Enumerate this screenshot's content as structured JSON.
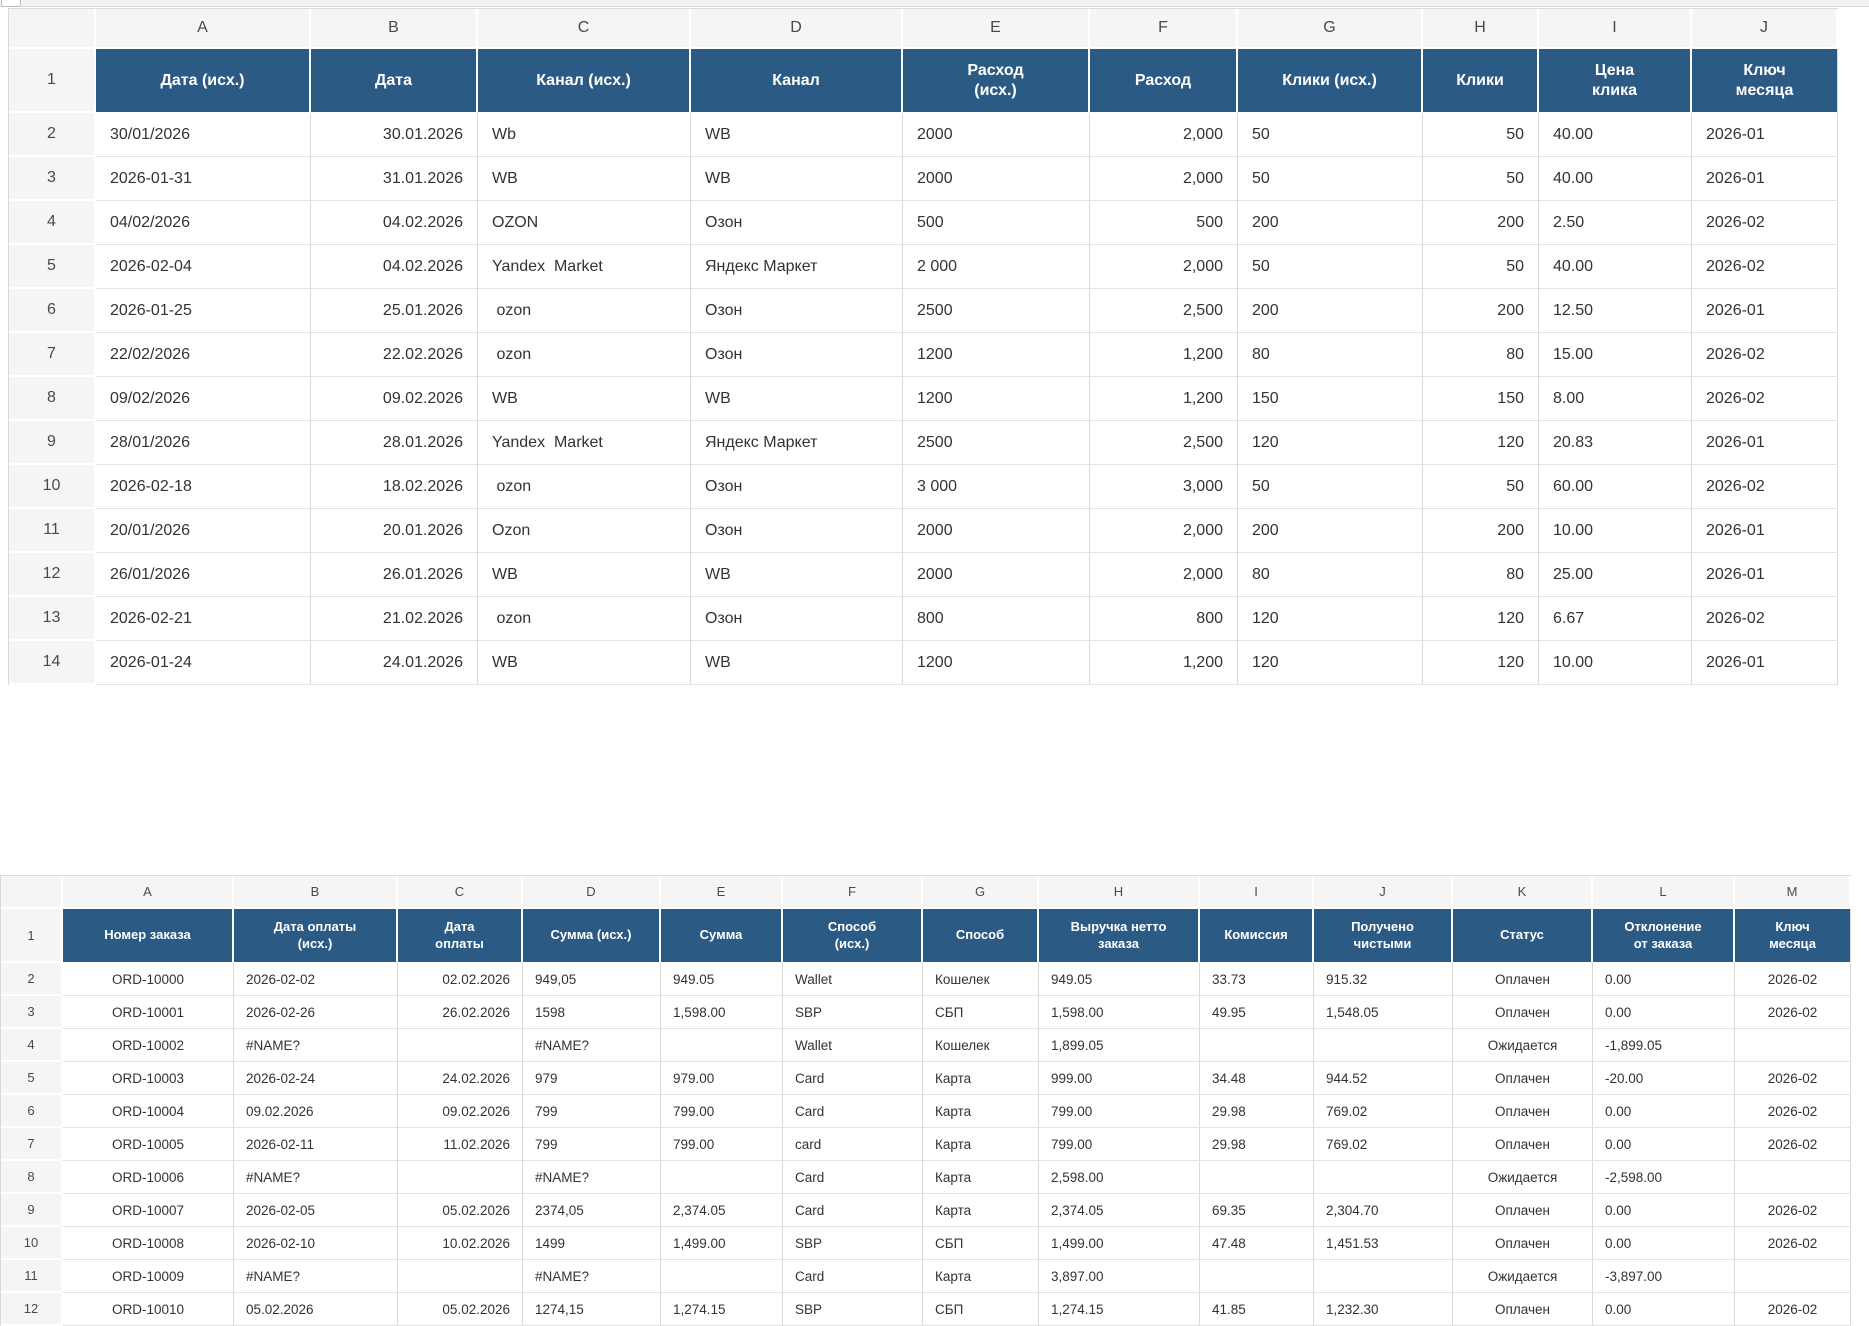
{
  "colors": {
    "header_bg": "#2b5a85",
    "header_text": "#ffffff",
    "gutter_bg": "#f5f5f5",
    "cell_text": "#333333"
  },
  "sheet1": {
    "column_letters": [
      "A",
      "B",
      "C",
      "D",
      "E",
      "F",
      "G",
      "H",
      "I",
      "J"
    ],
    "header_row_number": "1",
    "headers": [
      "Дата (исх.)",
      "Дата",
      "Канал (исх.)",
      "Канал",
      "Расход\n(исх.)",
      "Расход",
      "Клики (исх.)",
      "Клики",
      "Цена\nклика",
      "Ключ\nмесяца"
    ],
    "rows": [
      {
        "n": "2",
        "cells": [
          "30/01/2026",
          "30.01.2026",
          "Wb",
          "WB",
          "2000",
          "2,000",
          "50",
          "50",
          "40.00",
          "2026-01"
        ]
      },
      {
        "n": "3",
        "cells": [
          "2026-01-31",
          "31.01.2026",
          "WB",
          "WB",
          "2000",
          "2,000",
          "50",
          "50",
          "40.00",
          "2026-01"
        ]
      },
      {
        "n": "4",
        "cells": [
          "04/02/2026",
          "04.02.2026",
          "OZON",
          "Озон",
          "500",
          "500",
          "200",
          "200",
          "2.50",
          "2026-02"
        ]
      },
      {
        "n": "5",
        "cells": [
          "2026-02-04",
          "04.02.2026",
          "Yandex  Market",
          "Яндекс Маркет",
          "2 000",
          "2,000",
          "50",
          "50",
          "40.00",
          "2026-02"
        ]
      },
      {
        "n": "6",
        "cells": [
          "2026-01-25",
          "25.01.2026",
          " ozon",
          "Озон",
          "2500",
          "2,500",
          "200",
          "200",
          "12.50",
          "2026-01"
        ]
      },
      {
        "n": "7",
        "cells": [
          "22/02/2026",
          "22.02.2026",
          " ozon",
          "Озон",
          "1200",
          "1,200",
          "80",
          "80",
          "15.00",
          "2026-02"
        ]
      },
      {
        "n": "8",
        "cells": [
          "09/02/2026",
          "09.02.2026",
          "WB",
          "WB",
          "1200",
          "1,200",
          "150",
          "150",
          "8.00",
          "2026-02"
        ]
      },
      {
        "n": "9",
        "cells": [
          "28/01/2026",
          "28.01.2026",
          "Yandex  Market",
          "Яндекс Маркет",
          "2500",
          "2,500",
          "120",
          "120",
          "20.83",
          "2026-01"
        ]
      },
      {
        "n": "10",
        "cells": [
          "2026-02-18",
          "18.02.2026",
          " ozon",
          "Озон",
          "3 000",
          "3,000",
          "50",
          "50",
          "60.00",
          "2026-02"
        ]
      },
      {
        "n": "11",
        "cells": [
          "20/01/2026",
          "20.01.2026",
          "Ozon",
          "Озон",
          "2000",
          "2,000",
          "200",
          "200",
          "10.00",
          "2026-01"
        ]
      },
      {
        "n": "12",
        "cells": [
          "26/01/2026",
          "26.01.2026",
          "WB",
          "WB",
          "2000",
          "2,000",
          "80",
          "80",
          "25.00",
          "2026-01"
        ]
      },
      {
        "n": "13",
        "cells": [
          "2026-02-21",
          "21.02.2026",
          " ozon",
          "Озон",
          "800",
          "800",
          "120",
          "120",
          "6.67",
          "2026-02"
        ]
      },
      {
        "n": "14",
        "cells": [
          "2026-01-24",
          "24.01.2026",
          "WB",
          "WB",
          "1200",
          "1,200",
          "120",
          "120",
          "10.00",
          "2026-01"
        ]
      }
    ]
  },
  "sheet2": {
    "column_letters": [
      "A",
      "B",
      "C",
      "D",
      "E",
      "F",
      "G",
      "H",
      "I",
      "J",
      "K",
      "L",
      "M"
    ],
    "header_row_number": "1",
    "headers": [
      "Номер заказа",
      "Дата оплаты\n(исх.)",
      "Дата\nоплаты",
      "Сумма (исх.)",
      "Сумма",
      "Способ\n(исх.)",
      "Способ",
      "Выручка нетто\nзаказа",
      "Комиссия",
      "Получено\nчистыми",
      "Статус",
      "Отклонение\nот заказа",
      "Ключ\nмесяца"
    ],
    "rows": [
      {
        "n": "2",
        "cells": [
          "ORD-10000",
          "2026-02-02",
          "02.02.2026",
          "949,05",
          "949.05",
          "Wallet",
          "Кошелек",
          "949.05",
          "33.73",
          "915.32",
          "Оплачен",
          "0.00",
          "2026-02"
        ]
      },
      {
        "n": "3",
        "cells": [
          "ORD-10001",
          "2026-02-26",
          "26.02.2026",
          "1598",
          "1,598.00",
          "SBP",
          "СБП",
          "1,598.00",
          "49.95",
          "1,548.05",
          "Оплачен",
          "0.00",
          "2026-02"
        ]
      },
      {
        "n": "4",
        "cells": [
          "ORD-10002",
          "#NAME?",
          "",
          "#NAME?",
          "",
          "Wallet",
          "Кошелек",
          "1,899.05",
          "",
          "",
          "Ожидается",
          "-1,899.05",
          ""
        ]
      },
      {
        "n": "5",
        "cells": [
          "ORD-10003",
          "2026-02-24",
          "24.02.2026",
          "979",
          "979.00",
          "Card",
          "Карта",
          "999.00",
          "34.48",
          "944.52",
          "Оплачен",
          "-20.00",
          "2026-02"
        ]
      },
      {
        "n": "6",
        "cells": [
          "ORD-10004",
          "09.02.2026",
          "09.02.2026",
          "799",
          "799.00",
          "Card",
          "Карта",
          "799.00",
          "29.98",
          "769.02",
          "Оплачен",
          "0.00",
          "2026-02"
        ]
      },
      {
        "n": "7",
        "cells": [
          "ORD-10005",
          "2026-02-11",
          "11.02.2026",
          "799",
          "799.00",
          "card",
          "Карта",
          "799.00",
          "29.98",
          "769.02",
          "Оплачен",
          "0.00",
          "2026-02"
        ]
      },
      {
        "n": "8",
        "cells": [
          "ORD-10006",
          "#NAME?",
          "",
          "#NAME?",
          "",
          "Card",
          "Карта",
          "2,598.00",
          "",
          "",
          "Ожидается",
          "-2,598.00",
          ""
        ]
      },
      {
        "n": "9",
        "cells": [
          "ORD-10007",
          "2026-02-05",
          "05.02.2026",
          "2374,05",
          "2,374.05",
          "Card",
          "Карта",
          "2,374.05",
          "69.35",
          "2,304.70",
          "Оплачен",
          "0.00",
          "2026-02"
        ]
      },
      {
        "n": "10",
        "cells": [
          "ORD-10008",
          "2026-02-10",
          "10.02.2026",
          "1499",
          "1,499.00",
          "SBP",
          "СБП",
          "1,499.00",
          "47.48",
          "1,451.53",
          "Оплачен",
          "0.00",
          "2026-02"
        ]
      },
      {
        "n": "11",
        "cells": [
          "ORD-10009",
          "#NAME?",
          "",
          "#NAME?",
          "",
          "Card",
          "Карта",
          "3,897.00",
          "",
          "",
          "Ожидается",
          "-3,897.00",
          ""
        ]
      },
      {
        "n": "12",
        "cells": [
          "ORD-10010",
          "05.02.2026",
          "05.02.2026",
          "1274,15",
          "1,274.15",
          "SBP",
          "СБП",
          "1,274.15",
          "41.85",
          "1,232.30",
          "Оплачен",
          "0.00",
          "2026-02"
        ]
      }
    ]
  }
}
